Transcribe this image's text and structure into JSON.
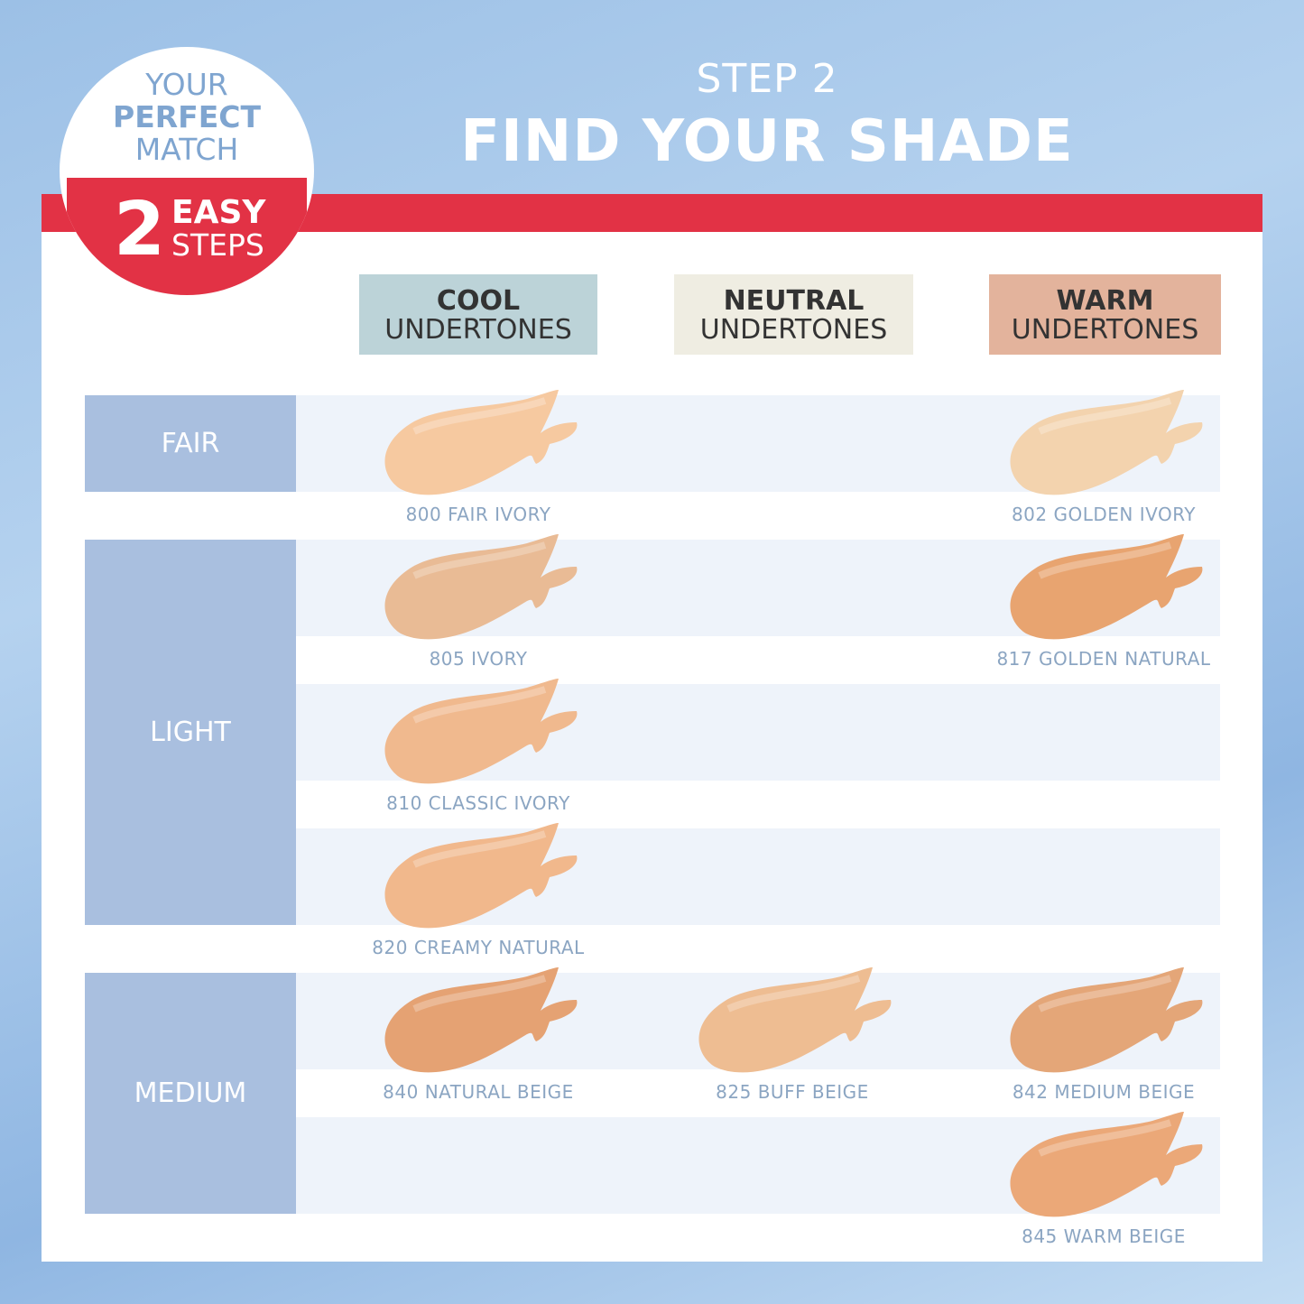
{
  "header": {
    "step": "STEP 2",
    "title": "FIND YOUR SHADE"
  },
  "badge": {
    "line1": "YOUR",
    "line2": "PERFECT",
    "line3": "MATCH",
    "number": "2",
    "line4": "EASY",
    "line5": "STEPS"
  },
  "columns": [
    {
      "bold": "COOL",
      "sub": "UNDERTONES",
      "color": "#bcd3d8"
    },
    {
      "bold": "NEUTRAL",
      "sub": "UNDERTONES",
      "color": "#efede2"
    },
    {
      "bold": "WARM",
      "sub": "UNDERTONES",
      "color": "#e3b39c"
    }
  ],
  "levels": [
    {
      "label": "FAIR"
    },
    {
      "label": "LIGHT"
    },
    {
      "label": "MEDIUM"
    }
  ],
  "shades": [
    {
      "name": "800 FAIR IVORY",
      "col": 0,
      "row": 0,
      "color": "#f6c9a0"
    },
    {
      "name": "802 GOLDEN IVORY",
      "col": 2,
      "row": 0,
      "color": "#f3d3ae"
    },
    {
      "name": "805 IVORY",
      "col": 0,
      "row": 1,
      "color": "#e9bb95"
    },
    {
      "name": "817 GOLDEN NATURAL",
      "col": 2,
      "row": 1,
      "color": "#e8a470"
    },
    {
      "name": "810 CLASSIC IVORY",
      "col": 0,
      "row": 2,
      "color": "#f0b98e"
    },
    {
      "name": "820 CREAMY NATURAL",
      "col": 0,
      "row": 3,
      "color": "#f1b88c"
    },
    {
      "name": "840 NATURAL BEIGE",
      "col": 0,
      "row": 4,
      "color": "#e5a273"
    },
    {
      "name": "825 BUFF BEIGE",
      "col": 1,
      "row": 4,
      "color": "#eebd92"
    },
    {
      "name": "842 MEDIUM BEIGE",
      "col": 2,
      "row": 4,
      "color": "#e4a678"
    },
    {
      "name": "845 WARM BEIGE",
      "col": 2,
      "row": 5,
      "color": "#eba878"
    }
  ]
}
